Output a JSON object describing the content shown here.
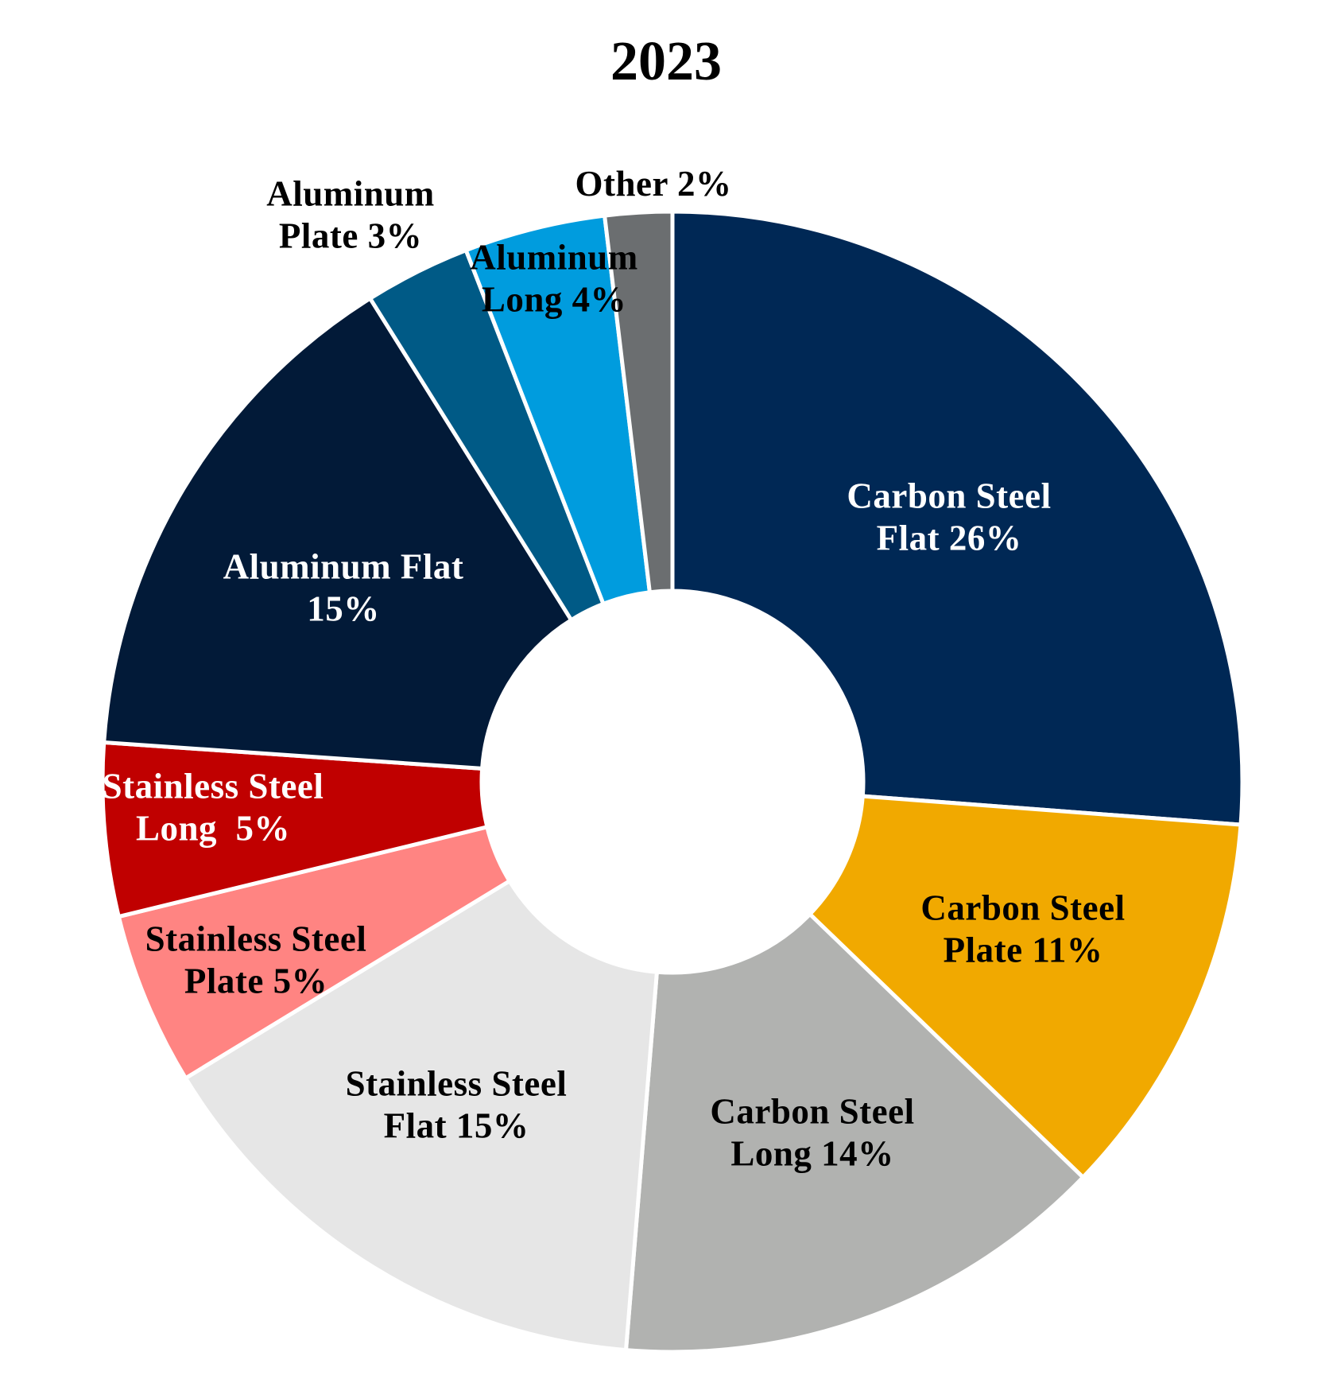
{
  "chart_data": {
    "type": "pie",
    "variant": "donut",
    "title": "2023",
    "start_angle_deg": 0,
    "direction": "clockwise",
    "legend": "none",
    "slices": [
      {
        "label_lines": [
          "Carbon Steel",
          "Flat 26%"
        ],
        "value": 26.2,
        "color": "#002855",
        "text_color": "#ffffff"
      },
      {
        "label_lines": [
          "Carbon Steel",
          "Plate 11%"
        ],
        "value": 11.0,
        "color": "#F1A900",
        "text_color": "#000000"
      },
      {
        "label_lines": [
          "Carbon Steel",
          "Long 14%"
        ],
        "value": 14.1,
        "color": "#B1B2B0",
        "text_color": "#000000"
      },
      {
        "label_lines": [
          "Stainless Steel",
          "Flat 15%"
        ],
        "value": 15.0,
        "color": "#E6E6E6",
        "text_color": "#000000"
      },
      {
        "label_lines": [
          "Stainless Steel",
          "Plate 5%"
        ],
        "value": 4.9,
        "color": "#FF8482",
        "text_color": "#000000"
      },
      {
        "label_lines": [
          "Stainless Steel",
          "Long  5%"
        ],
        "value": 4.9,
        "color": "#C00000",
        "text_color": "#ffffff"
      },
      {
        "label_lines": [
          "Aluminum Flat",
          "15%"
        ],
        "value": 15.0,
        "color": "#021A38",
        "text_color": "#ffffff"
      },
      {
        "label_lines": [
          "Aluminum",
          "Plate 3%"
        ],
        "value": 3.0,
        "color": "#005A86",
        "text_color": "#000000"
      },
      {
        "label_lines": [
          "Aluminum",
          "Long 4%"
        ],
        "value": 4.0,
        "color": "#009CDE",
        "text_color": "#000000"
      },
      {
        "label_lines": [
          "Other 2%"
        ],
        "value": 1.9,
        "color": "#6B6E70",
        "text_color": "#000000"
      }
    ]
  }
}
